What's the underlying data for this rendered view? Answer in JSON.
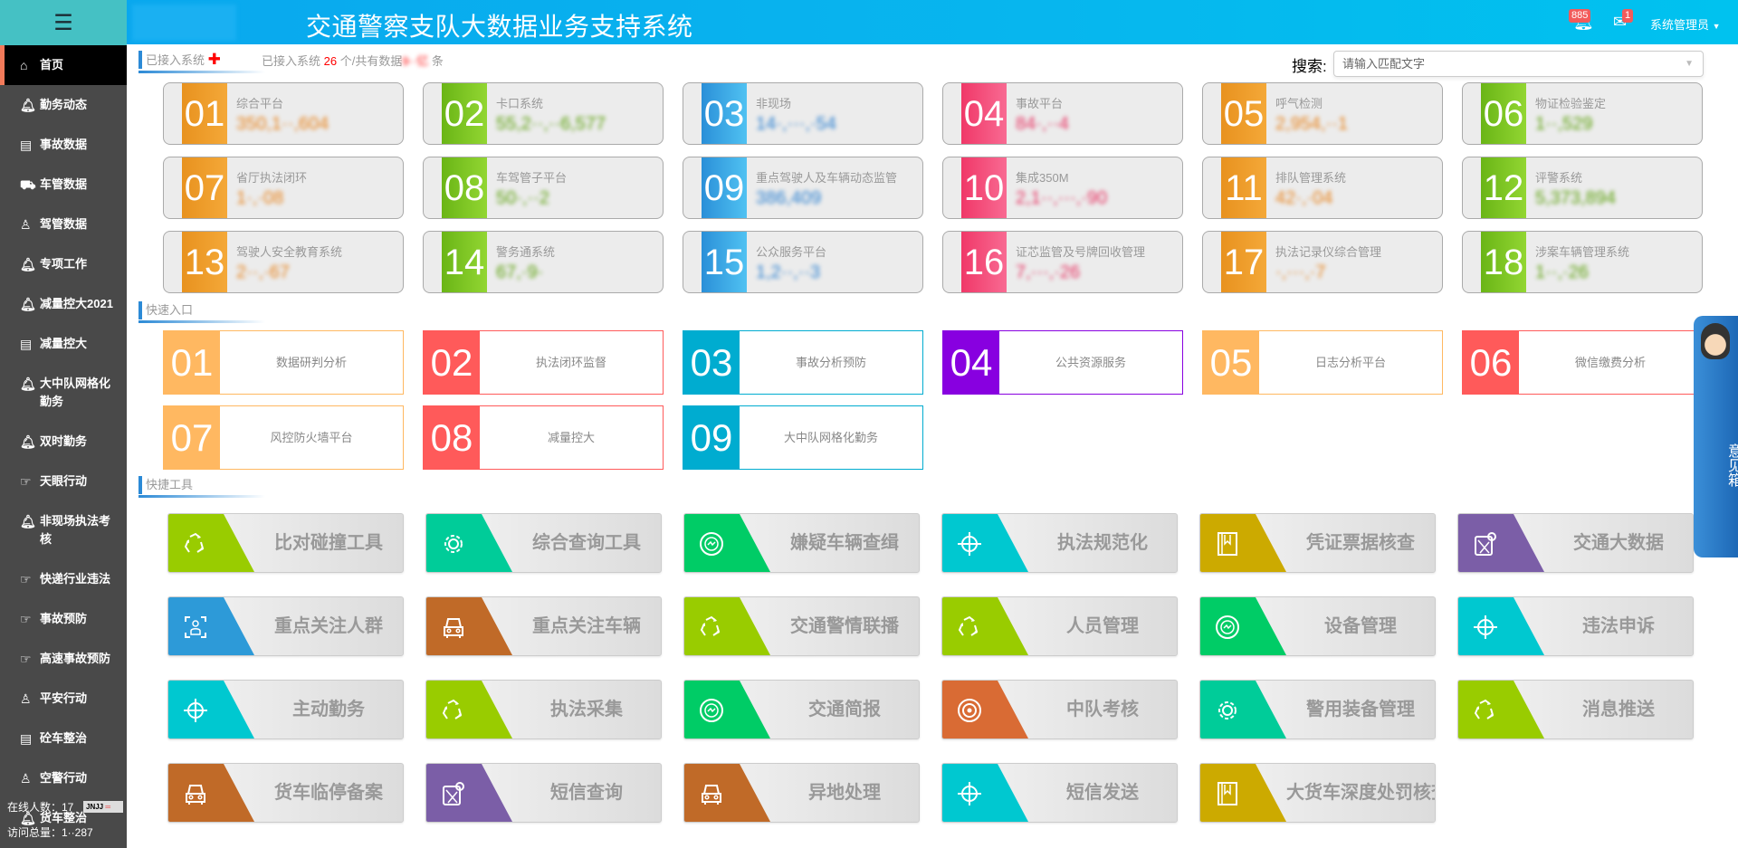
{
  "header": {
    "title": "交通警察支队大数据业务支持系统",
    "notifications": "885",
    "messages": "1",
    "user": "系统管理员"
  },
  "sidebar": {
    "items": [
      {
        "label": "首页",
        "icon": "home-icon",
        "active": true
      },
      {
        "label": "勤务动态",
        "icon": "bell-icon"
      },
      {
        "label": "事故数据",
        "icon": "book-icon"
      },
      {
        "label": "车管数据",
        "icon": "car-icon"
      },
      {
        "label": "驾管数据",
        "icon": "person-icon"
      },
      {
        "label": "专项工作",
        "icon": "bell-icon"
      },
      {
        "label": "减量控大2021",
        "icon": "bell-icon"
      },
      {
        "label": "减量控大",
        "icon": "book-icon"
      },
      {
        "label": "大中队网格化勤务",
        "icon": "bell-icon"
      },
      {
        "label": "双时勤务",
        "icon": "bell-icon"
      },
      {
        "label": "天眼行动",
        "icon": "thumb-icon"
      },
      {
        "label": "非现场执法考核",
        "icon": "bell-icon"
      },
      {
        "label": "快递行业违法",
        "icon": "thumb-icon"
      },
      {
        "label": "事故预防",
        "icon": "thumb-icon"
      },
      {
        "label": "高速事故预防",
        "icon": "thumb-icon"
      },
      {
        "label": "平安行动",
        "icon": "person-icon"
      },
      {
        "label": "砼车整治",
        "icon": "book-icon"
      },
      {
        "label": "空警行动",
        "icon": "person-icon"
      },
      {
        "label": "货车整治",
        "icon": "bell-icon"
      }
    ],
    "online": "在线人数：17",
    "visits": "访问总量：1··287",
    "badge": "JNJJ"
  },
  "connected": {
    "section": "已接入系统",
    "prefix": "已接入系统",
    "count": "26",
    "mid": "个/共有数据",
    "total": "9··亿",
    "suffix": "条"
  },
  "search": {
    "label": "搜索:",
    "placeholder": "请输入匹配文字"
  },
  "systems": [
    {
      "no": "01",
      "name": "综合平台",
      "value": "350,1··,604",
      "color": "orange"
    },
    {
      "no": "02",
      "name": "卡口系统",
      "value": "55,2··,··6,577",
      "color": "green"
    },
    {
      "no": "03",
      "name": "非现场",
      "value": "14·,···,·54",
      "color": "blue"
    },
    {
      "no": "04",
      "name": "事故平台",
      "value": "84·,··4",
      "color": "pink"
    },
    {
      "no": "05",
      "name": "呼气检测",
      "value": "2,954,··1",
      "color": "orange"
    },
    {
      "no": "06",
      "name": "物证检验鉴定",
      "value": "1··,529",
      "color": "green"
    },
    {
      "no": "07",
      "name": "省厅执法闭环",
      "value": "1·,·08",
      "color": "orange"
    },
    {
      "no": "08",
      "name": "车驾管子平台",
      "value": "50·,··2",
      "color": "green"
    },
    {
      "no": "09",
      "name": "重点驾驶人及车辆动态监管",
      "value": "386,409",
      "color": "blue"
    },
    {
      "no": "10",
      "name": "集成350M",
      "value": "2,1··,···,·90",
      "color": "pink"
    },
    {
      "no": "11",
      "name": "排队管理系统",
      "value": "42·,·04",
      "color": "orange"
    },
    {
      "no": "12",
      "name": "评警系统",
      "value": "5,373,894",
      "color": "green"
    },
    {
      "no": "13",
      "name": "驾驶人安全教育系统",
      "value": "2··,·67",
      "color": "orange"
    },
    {
      "no": "14",
      "name": "警务通系统",
      "value": "67,·9·",
      "color": "green"
    },
    {
      "no": "15",
      "name": "公众服务平台",
      "value": "1,2··,··3",
      "color": "blue"
    },
    {
      "no": "16",
      "name": "证芯监管及号牌回收管理",
      "value": "7,···,·26",
      "color": "pink"
    },
    {
      "no": "17",
      "name": "执法记录仪综合管理",
      "value": "·,···,·7",
      "color": "orange"
    },
    {
      "no": "18",
      "name": "涉案车辆管理系统",
      "value": "1··,·26",
      "color": "green"
    }
  ],
  "quick": {
    "section": "快速入口",
    "items": [
      {
        "no": "01",
        "label": "数据研判分析",
        "color": "#ffb861"
      },
      {
        "no": "02",
        "label": "执法闭环监督",
        "color": "#ff5a5a"
      },
      {
        "no": "03",
        "label": "事故分析预防",
        "color": "#00acd0"
      },
      {
        "no": "04",
        "label": "公共资源服务",
        "color": "#8800e0"
      },
      {
        "no": "05",
        "label": "日志分析平台",
        "color": "#ffb861"
      },
      {
        "no": "06",
        "label": "微信缴费分析",
        "color": "#ff5a5a"
      },
      {
        "no": "07",
        "label": "风控防火墙平台",
        "color": "#ffb861"
      },
      {
        "no": "08",
        "label": "减量控大",
        "color": "#ff5a5a"
      },
      {
        "no": "09",
        "label": "大中队网格化勤务",
        "color": "#00acd0"
      }
    ]
  },
  "tools": {
    "section": "快捷工具",
    "items": [
      {
        "label": "比对碰撞工具",
        "icon": "recycle-icon",
        "color": "#99cc00"
      },
      {
        "label": "综合查询工具",
        "icon": "gear-icon",
        "color": "#00cc99"
      },
      {
        "label": "嫌疑车辆查缉",
        "icon": "cycle-icon",
        "color": "#00cc66"
      },
      {
        "label": "执法规范化",
        "icon": "target-icon",
        "color": "#00c8d0"
      },
      {
        "label": "凭证票据核查",
        "icon": "bookmark-icon",
        "color": "#ccaa00"
      },
      {
        "label": "交通大数据",
        "icon": "map-icon",
        "color": "#7b5ea7"
      },
      {
        "label": "重点关注人群",
        "icon": "person-scan-icon",
        "color": "#2d9ad8"
      },
      {
        "label": "重点关注车辆",
        "icon": "car-icon",
        "color": "#c06a28"
      },
      {
        "label": "交通警情联播",
        "icon": "recycle-icon",
        "color": "#99cc00"
      },
      {
        "label": "人员管理",
        "icon": "recycle-icon",
        "color": "#99cc00"
      },
      {
        "label": "设备管理",
        "icon": "cycle-icon",
        "color": "#00cc66"
      },
      {
        "label": "违法申诉",
        "icon": "target-icon",
        "color": "#00c8d0"
      },
      {
        "label": "主动勤务",
        "icon": "target-icon",
        "color": "#00c8d0"
      },
      {
        "label": "执法采集",
        "icon": "recycle-icon",
        "color": "#99cc00"
      },
      {
        "label": "交通简报",
        "icon": "cycle-icon",
        "color": "#00cc66"
      },
      {
        "label": "中队考核",
        "icon": "radar-icon",
        "color": "#d96b34"
      },
      {
        "label": "警用装备管理",
        "icon": "gear-icon",
        "color": "#00cc99"
      },
      {
        "label": "消息推送",
        "icon": "recycle-icon",
        "color": "#99cc00"
      },
      {
        "label": "货车临停备案",
        "icon": "car-icon",
        "color": "#c06a28"
      },
      {
        "label": "短信查询",
        "icon": "map-icon",
        "color": "#7b5ea7"
      },
      {
        "label": "异地处理",
        "icon": "car-icon",
        "color": "#c06a28"
      },
      {
        "label": "短信发送",
        "icon": "target-icon",
        "color": "#00c8d0"
      },
      {
        "label": "大货车深度处罚核查",
        "icon": "bookmark-icon",
        "color": "#ccaa00"
      }
    ]
  },
  "feedback": {
    "label": "意见箱"
  },
  "colors": {
    "orange": [
      "#e8921f",
      "#f4a838",
      "#e8821a"
    ],
    "green": [
      "#6ab516",
      "#92d632",
      "#5aa00a"
    ],
    "blue": [
      "#2a8fd8",
      "#50c2f2",
      "#2a7fd0"
    ],
    "pink": [
      "#f03868",
      "#f86a92",
      "#e83060"
    ]
  }
}
